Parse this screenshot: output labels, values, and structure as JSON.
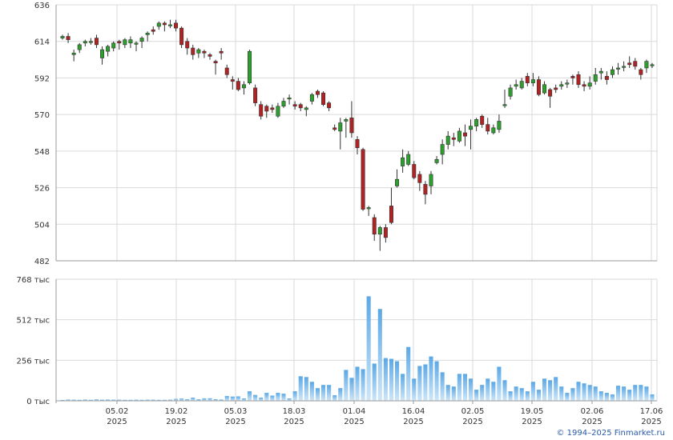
{
  "chart_data": [
    {
      "type": "candlestick",
      "title": "",
      "ylim": [
        482,
        636
      ],
      "y_ticks": [
        "482",
        "504",
        "526",
        "548",
        "570",
        "592",
        "614",
        "636"
      ],
      "x_ticks": [
        {
          "day": "05.02",
          "year": "2025"
        },
        {
          "day": "19.02",
          "year": "2025"
        },
        {
          "day": "05.03",
          "year": "2025"
        },
        {
          "day": "18.03",
          "year": "2025"
        },
        {
          "day": "01.04",
          "year": "2025"
        },
        {
          "day": "16.04",
          "year": "2025"
        },
        {
          "day": "02.05",
          "year": "2025"
        },
        {
          "day": "19.05",
          "year": "2025"
        },
        {
          "day": "02.06",
          "year": "2025"
        },
        {
          "day": "17.06",
          "year": "2025"
        }
      ],
      "up_color": "#2ca02c",
      "down_color": "#b22222",
      "candles": [
        [
          616,
          617,
          618,
          615
        ],
        [
          617,
          615,
          619,
          613
        ],
        [
          606,
          607,
          609,
          602
        ],
        [
          609,
          612,
          613,
          607
        ],
        [
          613,
          614,
          615,
          611
        ],
        [
          614,
          614,
          616,
          612
        ],
        [
          616,
          612,
          618,
          610
        ],
        [
          604,
          609,
          611,
          600
        ],
        [
          608,
          611,
          612,
          605
        ],
        [
          610,
          613,
          614,
          608
        ],
        [
          614,
          613,
          615,
          609
        ],
        [
          612,
          615,
          616,
          610
        ],
        [
          613,
          615,
          617,
          610
        ],
        [
          613,
          613,
          614,
          608
        ],
        [
          614,
          616,
          617,
          610
        ],
        [
          618,
          619,
          620,
          614
        ],
        [
          621,
          620,
          623,
          618
        ],
        [
          623,
          625,
          626,
          621
        ],
        [
          625,
          624,
          626,
          620
        ],
        [
          624,
          624,
          627,
          622
        ],
        [
          625,
          622,
          627,
          620
        ],
        [
          622,
          612,
          623,
          610
        ],
        [
          614,
          610,
          616,
          606
        ],
        [
          610,
          606,
          612,
          603
        ],
        [
          607,
          609,
          610,
          604
        ],
        [
          608,
          607,
          609,
          604
        ],
        [
          606,
          605,
          607,
          603
        ],
        [
          602,
          601,
          603,
          594
        ],
        [
          608,
          607,
          610,
          603
        ],
        [
          598,
          594,
          600,
          592
        ],
        [
          591,
          590,
          593,
          585
        ],
        [
          590,
          585,
          592,
          584
        ],
        [
          586,
          588,
          590,
          582
        ],
        [
          589,
          608,
          609,
          588
        ],
        [
          586,
          577,
          588,
          575
        ],
        [
          576,
          569,
          578,
          567
        ],
        [
          575,
          572,
          576,
          568
        ],
        [
          574,
          573,
          576,
          571
        ],
        [
          569,
          575,
          577,
          568
        ],
        [
          575,
          578,
          580,
          574
        ],
        [
          580,
          580,
          582,
          576
        ],
        [
          576,
          575,
          578,
          573
        ],
        [
          576,
          574,
          577,
          572
        ],
        [
          573,
          574,
          575,
          569
        ],
        [
          578,
          582,
          583,
          576
        ],
        [
          584,
          582,
          585,
          580
        ],
        [
          583,
          576,
          584,
          575
        ],
        [
          577,
          574,
          578,
          572
        ],
        [
          562,
          561,
          564,
          560
        ],
        [
          560,
          565,
          568,
          549
        ],
        [
          566,
          567,
          568,
          556
        ],
        [
          568,
          559,
          578,
          556
        ],
        [
          555,
          550,
          557,
          546
        ],
        [
          549,
          513,
          550,
          512
        ],
        [
          514,
          514,
          515,
          509
        ],
        [
          508,
          498,
          510,
          494
        ],
        [
          498,
          502,
          503,
          488
        ],
        [
          502,
          496,
          504,
          493
        ],
        [
          515,
          505,
          526,
          504
        ],
        [
          527,
          531,
          537,
          526
        ],
        [
          539,
          544,
          549,
          535
        ],
        [
          540,
          546,
          548,
          539
        ],
        [
          540,
          532,
          542,
          531
        ],
        [
          534,
          529,
          536,
          524
        ],
        [
          528,
          522,
          530,
          516
        ],
        [
          527,
          534,
          536,
          522
        ],
        [
          541,
          543,
          545,
          540
        ],
        [
          546,
          552,
          555,
          540
        ],
        [
          552,
          557,
          560,
          549
        ],
        [
          556,
          555,
          559,
          551
        ],
        [
          554,
          560,
          562,
          553
        ],
        [
          559,
          557,
          564,
          551
        ],
        [
          561,
          563,
          567,
          549
        ],
        [
          563,
          567,
          568,
          560
        ],
        [
          569,
          564,
          570,
          562
        ],
        [
          564,
          560,
          568,
          558
        ],
        [
          559,
          562,
          564,
          558
        ],
        [
          561,
          566,
          570,
          559
        ],
        [
          576,
          576,
          585,
          574
        ],
        [
          581,
          586,
          588,
          579
        ],
        [
          587,
          588,
          591,
          585
        ],
        [
          586,
          590,
          592,
          585
        ],
        [
          593,
          589,
          595,
          587
        ],
        [
          589,
          591,
          595,
          587
        ],
        [
          591,
          582,
          593,
          581
        ],
        [
          583,
          588,
          590,
          582
        ],
        [
          585,
          581,
          586,
          574
        ],
        [
          586,
          585,
          588,
          583
        ],
        [
          587,
          588,
          590,
          585
        ],
        [
          589,
          589,
          591,
          586
        ],
        [
          593,
          592,
          594,
          588
        ],
        [
          594,
          588,
          596,
          586
        ],
        [
          588,
          587,
          590,
          584
        ],
        [
          587,
          589,
          593,
          585
        ],
        [
          590,
          594,
          598,
          588
        ],
        [
          595,
          596,
          598,
          591
        ],
        [
          593,
          591,
          596,
          588
        ],
        [
          594,
          597,
          599,
          592
        ],
        [
          598,
          598,
          601,
          594
        ],
        [
          599,
          599,
          602,
          596
        ],
        [
          601,
          600,
          605,
          598
        ],
        [
          602,
          599,
          604,
          597
        ],
        [
          597,
          594,
          598,
          591
        ],
        [
          598,
          602,
          603,
          595
        ],
        [
          600,
          600,
          601,
          598
        ]
      ]
    },
    {
      "type": "bar",
      "title": "",
      "ylim": [
        0,
        768000
      ],
      "y_ticks": [
        "0 тыс",
        "256 тыс",
        "512 тыс",
        "768 тыс"
      ],
      "color": "#5aa8e6",
      "values": [
        5000,
        8000,
        7000,
        6000,
        8000,
        6000,
        9000,
        7000,
        8000,
        7000,
        7000,
        6000,
        6000,
        7000,
        6000,
        7000,
        7000,
        6000,
        6000,
        7000,
        12000,
        14000,
        10000,
        20000,
        10000,
        15000,
        16000,
        10000,
        8000,
        30000,
        27000,
        28000,
        15000,
        60000,
        37000,
        20000,
        50000,
        33000,
        50000,
        45000,
        15000,
        60000,
        155000,
        150000,
        120000,
        80000,
        100000,
        100000,
        35000,
        80000,
        195000,
        145000,
        215000,
        200000,
        660000,
        235000,
        580000,
        270000,
        265000,
        250000,
        170000,
        340000,
        140000,
        220000,
        230000,
        280000,
        250000,
        180000,
        100000,
        90000,
        170000,
        170000,
        140000,
        70000,
        100000,
        140000,
        120000,
        215000,
        130000,
        60000,
        90000,
        80000,
        60000,
        120000,
        70000,
        140000,
        130000,
        150000,
        90000,
        50000,
        80000,
        120000,
        110000,
        100000,
        90000,
        60000,
        50000,
        40000,
        95000,
        90000,
        70000,
        100000,
        100000,
        90000,
        40000
      ]
    }
  ],
  "footer": {
    "copyright": "© 1994–2025 Finmarket.ru",
    "link_color": "#2a5aa8"
  }
}
